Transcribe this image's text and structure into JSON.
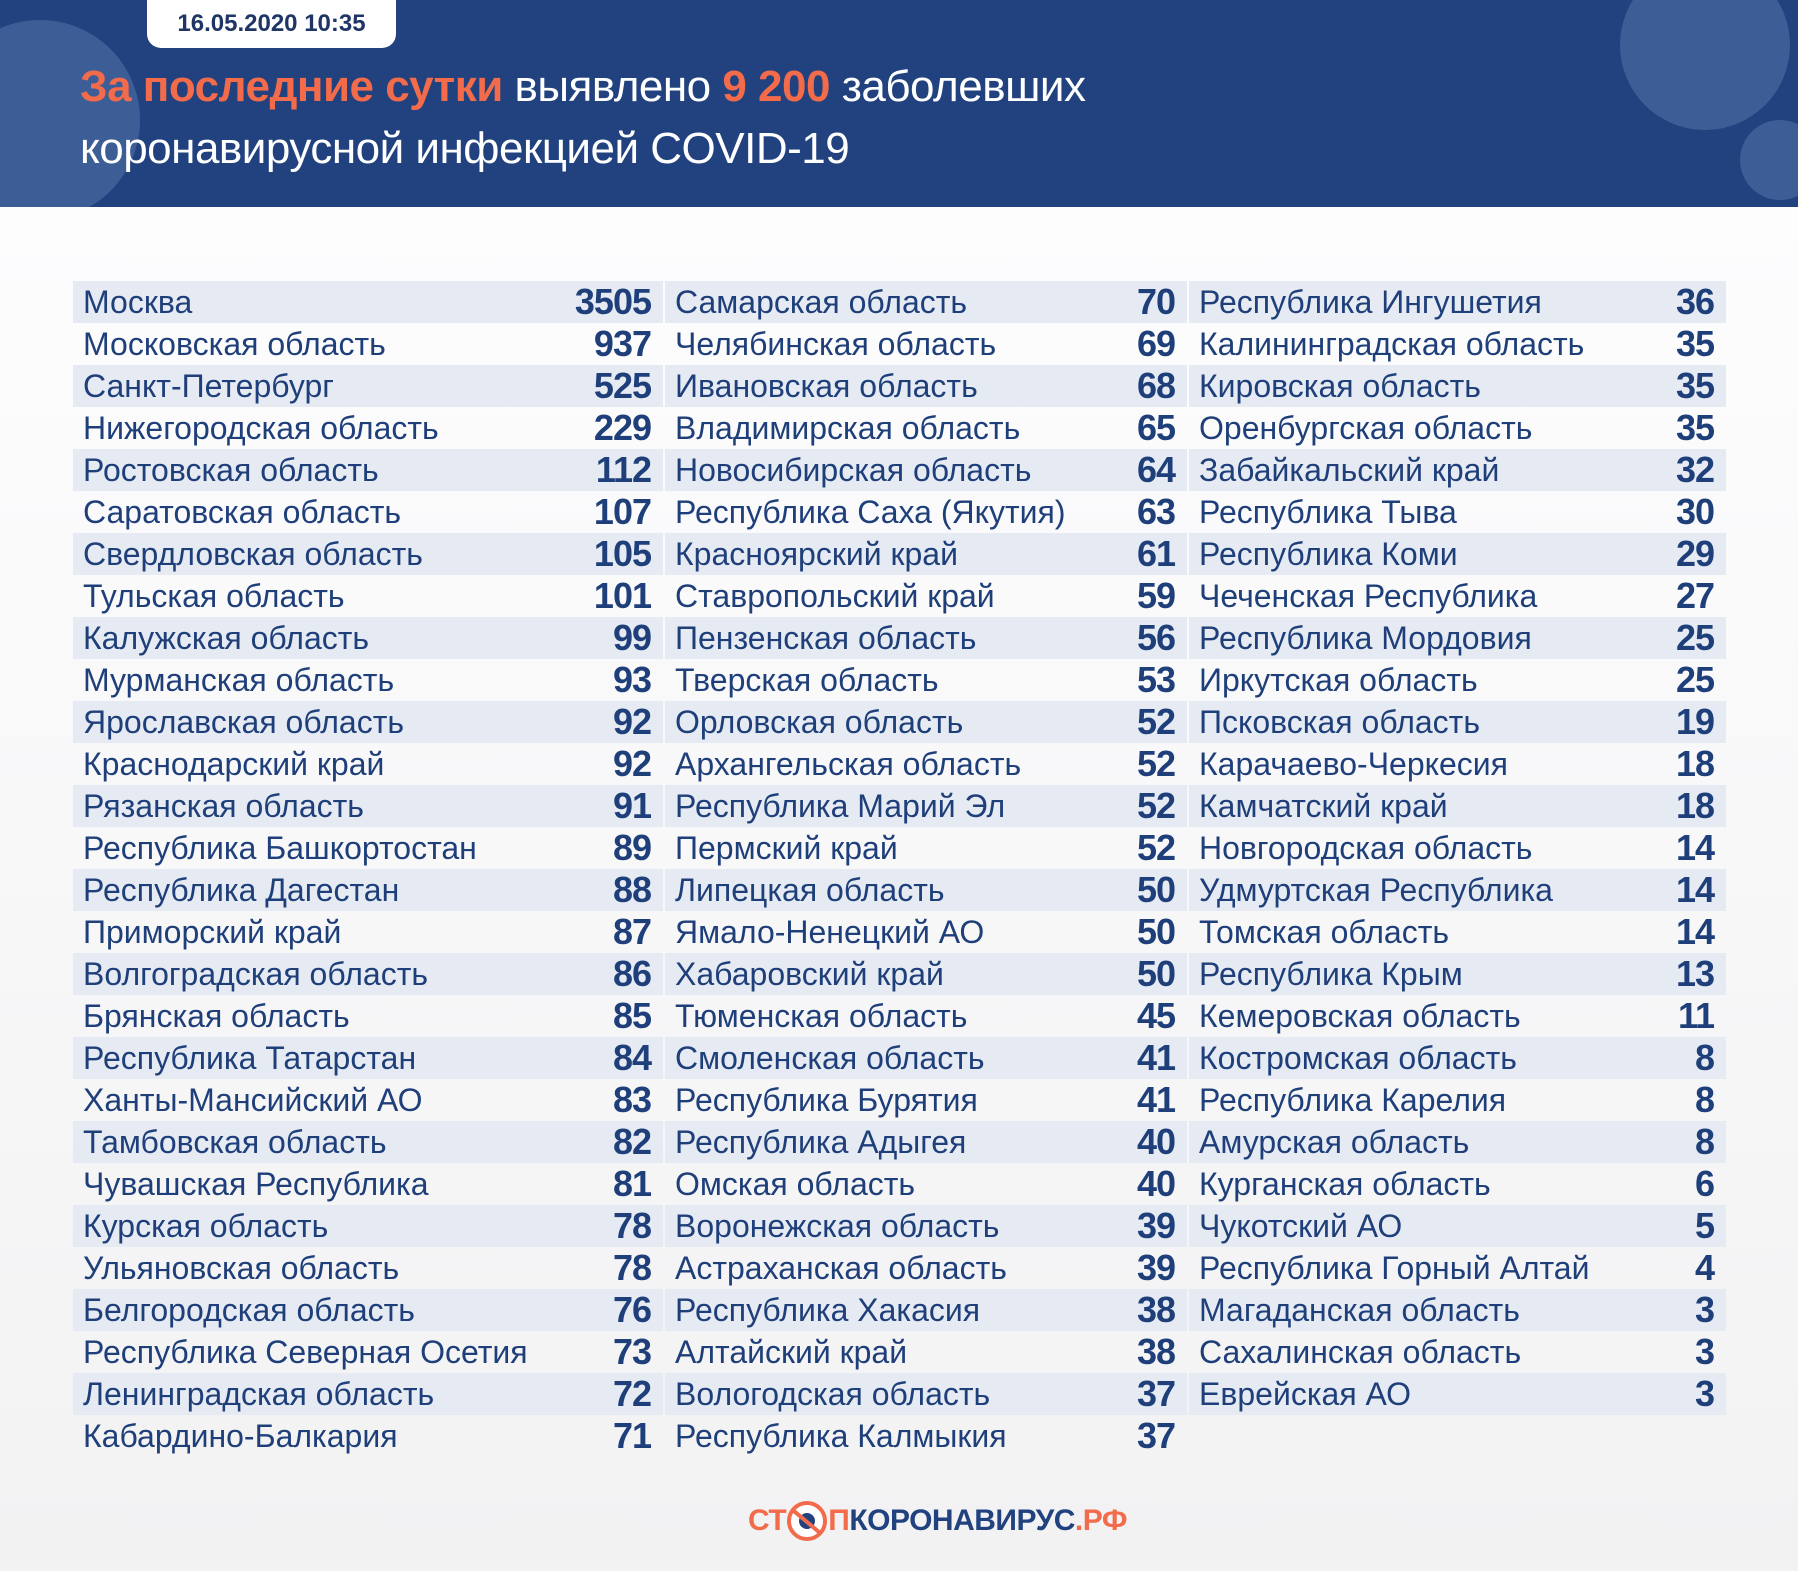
{
  "header": {
    "date": "16.05.2020 10:35",
    "title_highlight": "За последние сутки",
    "title_part2": " выявлено ",
    "count": "9 200",
    "title_part3": " заболевших",
    "title_line2": "коронавирусной инфекцией COVID-19"
  },
  "colors": {
    "header_bg": "#21427f",
    "accent": "#f26b4a",
    "text": "#1f3f7a",
    "row_shade": "#e6ebf3"
  },
  "columns": [
    [
      [
        "Москва",
        "3505"
      ],
      [
        "Московская область",
        "937"
      ],
      [
        "Санкт-Петербург",
        "525"
      ],
      [
        "Нижегородская область",
        "229"
      ],
      [
        "Ростовская область",
        "112"
      ],
      [
        "Саратовская область",
        "107"
      ],
      [
        "Свердловская область",
        "105"
      ],
      [
        "Тульская область",
        "101"
      ],
      [
        "Калужская область",
        "99"
      ],
      [
        "Мурманская область",
        "93"
      ],
      [
        "Ярославская область",
        "92"
      ],
      [
        "Краснодарский край",
        "92"
      ],
      [
        "Рязанская область",
        "91"
      ],
      [
        "Республика Башкортостан",
        "89"
      ],
      [
        "Республика Дагестан",
        "88"
      ],
      [
        "Приморский край",
        "87"
      ],
      [
        "Волгоградская область",
        "86"
      ],
      [
        "Брянская область",
        "85"
      ],
      [
        "Республика Татарстан",
        "84"
      ],
      [
        "Ханты-Мансийский АО",
        "83"
      ],
      [
        "Тамбовская область",
        "82"
      ],
      [
        "Чувашская Республика",
        "81"
      ],
      [
        "Курская область",
        "78"
      ],
      [
        "Ульяновская область",
        "78"
      ],
      [
        "Белгородская область",
        "76"
      ],
      [
        "Республика Северная Осетия",
        "73"
      ],
      [
        "Ленинградская область",
        "72"
      ],
      [
        "Кабардино-Балкария",
        "71"
      ]
    ],
    [
      [
        "Самарская область",
        "70"
      ],
      [
        "Челябинская область",
        "69"
      ],
      [
        "Ивановская область",
        "68"
      ],
      [
        "Владимирская область",
        "65"
      ],
      [
        "Новосибирская область",
        "64"
      ],
      [
        "Республика Саха (Якутия)",
        "63"
      ],
      [
        "Красноярский край",
        "61"
      ],
      [
        "Ставропольский край",
        "59"
      ],
      [
        "Пензенская область",
        "56"
      ],
      [
        "Тверская область",
        "53"
      ],
      [
        "Орловская область",
        "52"
      ],
      [
        "Архангельская область",
        "52"
      ],
      [
        "Республика Марий Эл",
        "52"
      ],
      [
        "Пермский край",
        "52"
      ],
      [
        "Липецкая область",
        "50"
      ],
      [
        "Ямало-Ненецкий АО",
        "50"
      ],
      [
        "Хабаровский край",
        "50"
      ],
      [
        "Тюменская область",
        "45"
      ],
      [
        "Смоленская область",
        "41"
      ],
      [
        "Республика Бурятия",
        "41"
      ],
      [
        "Республика Адыгея",
        "40"
      ],
      [
        "Омская область",
        "40"
      ],
      [
        "Воронежская область",
        "39"
      ],
      [
        "Астраханская область",
        "39"
      ],
      [
        "Республика Хакасия",
        "38"
      ],
      [
        "Алтайский край",
        "38"
      ],
      [
        "Вологодская область",
        "37"
      ],
      [
        "Республика Калмыкия",
        "37"
      ]
    ],
    [
      [
        "Республика Ингушетия",
        "36"
      ],
      [
        "Калининградская область",
        "35"
      ],
      [
        "Кировская область",
        "35"
      ],
      [
        "Оренбургская область",
        "35"
      ],
      [
        "Забайкальский край",
        "32"
      ],
      [
        "Республика Тыва",
        "30"
      ],
      [
        "Республика Коми",
        "29"
      ],
      [
        "Чеченская Республика",
        "27"
      ],
      [
        "Республика Мордовия",
        "25"
      ],
      [
        "Иркутская область",
        "25"
      ],
      [
        "Псковская область",
        "19"
      ],
      [
        "Карачаево-Черкесия",
        "18"
      ],
      [
        "Камчатский край",
        "18"
      ],
      [
        "Новгородская область",
        "14"
      ],
      [
        "Удмуртская Республика",
        "14"
      ],
      [
        "Томская область",
        "14"
      ],
      [
        "Республика Крым",
        "13"
      ],
      [
        "Кемеровская область",
        "11"
      ],
      [
        "Костромская область",
        "8"
      ],
      [
        "Республика Карелия",
        "8"
      ],
      [
        "Амурская область",
        "8"
      ],
      [
        "Курганская область",
        "6"
      ],
      [
        "Чукотский АО",
        "5"
      ],
      [
        "Республика Горный Алтай",
        "4"
      ],
      [
        "Магаданская область",
        "3"
      ],
      [
        "Сахалинская область",
        "3"
      ],
      [
        "Еврейская АО",
        "3"
      ]
    ]
  ],
  "footer": {
    "logo_part1": "СТ",
    "logo_part2": "ПКОРОНАВИРУС",
    "logo_part3": ".РФ"
  }
}
